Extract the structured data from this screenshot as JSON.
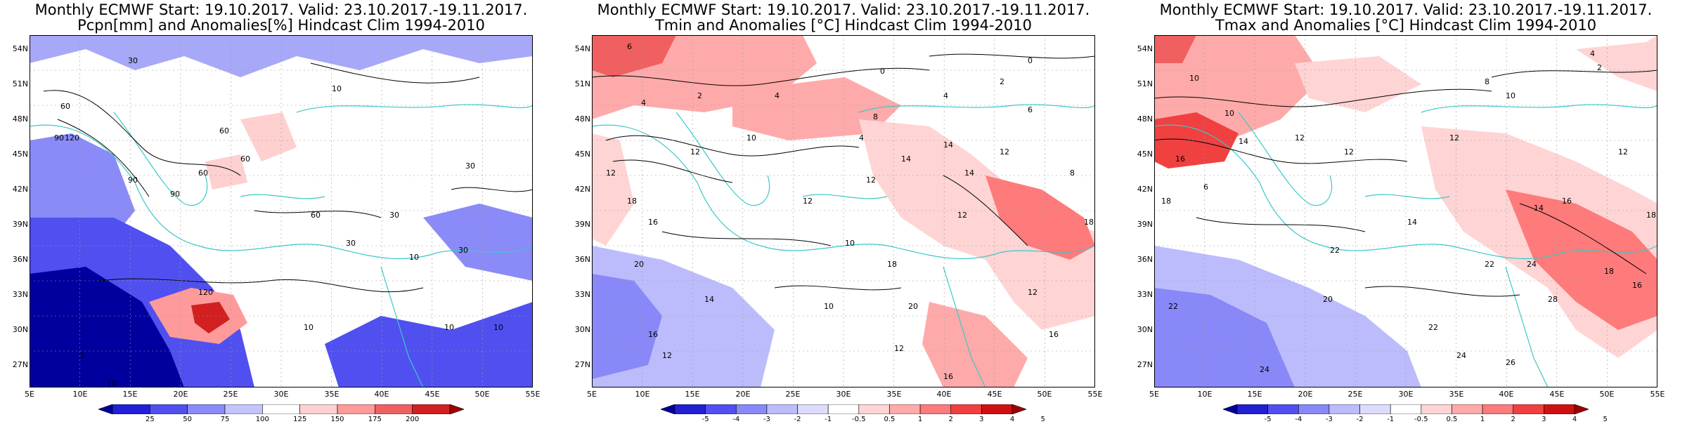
{
  "panels": [
    {
      "title_line1": "Monthly ECMWF Start: 19.10.2017. Valid: 23.10.2017.-19.11.2017.",
      "title_line2": "Pcpn[mm] and Anomalies[%] Hindcast Clim 1994-2010",
      "colorbar_labels": [
        "25",
        "50",
        "75",
        "100",
        "125",
        "150",
        "175",
        "200"
      ],
      "contour_labels": [
        "60",
        "90",
        "120",
        "30",
        "60",
        "10",
        "10",
        "10",
        "1",
        "60",
        "30",
        "120",
        "30",
        "10",
        "90",
        "10",
        "60",
        "30",
        "90",
        "60",
        "10",
        "30"
      ]
    },
    {
      "title_line1": "Monthly ECMWF Start: 19.10.2017. Valid: 23.10.2017.-19.11.2017.",
      "title_line2": "Tmin and Anomalies [°C] Hindcast Clim 1994-2010",
      "colorbar_labels": [
        "-5",
        "-4",
        "-3",
        "-2",
        "-1",
        "-0.5",
        "0.5",
        "1",
        "2",
        "3",
        "4",
        "5"
      ],
      "contour_labels": [
        "6",
        "4",
        "2",
        "0",
        "4",
        "4",
        "8",
        "10",
        "12",
        "12",
        "18",
        "16",
        "20",
        "10",
        "14",
        "12",
        "16",
        "12",
        "18",
        "16",
        "20",
        "12",
        "14",
        "10",
        "12",
        "16",
        "18",
        "12",
        "14",
        "12",
        "4",
        "2",
        "0",
        "14",
        "12",
        "8",
        "6"
      ]
    },
    {
      "title_line1": "Monthly ECMWF Start: 19.10.2017. Valid: 23.10.2017.-19.11.2017.",
      "title_line2": "Tmax and Anomalies [°C] Hindcast Clim 1994-2010",
      "colorbar_labels": [
        "-5",
        "-4",
        "-3",
        "-2",
        "-1",
        "-0.5",
        "0.5",
        "1",
        "2",
        "3",
        "4",
        "5"
      ],
      "contour_labels": [
        "10",
        "4",
        "2",
        "8",
        "10",
        "12",
        "14",
        "16",
        "18",
        "6",
        "12",
        "14",
        "16",
        "12",
        "22",
        "20",
        "22",
        "24",
        "26",
        "14",
        "18",
        "16",
        "24",
        "22",
        "28",
        "10",
        "12",
        "18",
        "22",
        "24"
      ]
    }
  ],
  "lat_labels": [
    "54N",
    "51N",
    "48N",
    "45N",
    "42N",
    "39N",
    "36N",
    "33N",
    "30N",
    "27N"
  ],
  "lon_labels": [
    "5E",
    "10E",
    "15E",
    "20E",
    "25E",
    "30E",
    "35E",
    "40E",
    "45E",
    "50E",
    "55E"
  ],
  "colors": {
    "pcpn": [
      "#00009e",
      "#2020d8",
      "#5050f0",
      "#8a8af8",
      "#c4c4fc",
      "#ffffff",
      "#ffd0d0",
      "#ff9a9a",
      "#f06060",
      "#d02020",
      "#a00000"
    ],
    "temp": [
      "#0000a0",
      "#2020d0",
      "#5050f0",
      "#8888f8",
      "#bcbcfc",
      "#dcdcfe",
      "#ffffff",
      "#ffd4d4",
      "#ffaaaa",
      "#ff7a7a",
      "#f04040",
      "#d01010",
      "#a00000"
    ]
  }
}
